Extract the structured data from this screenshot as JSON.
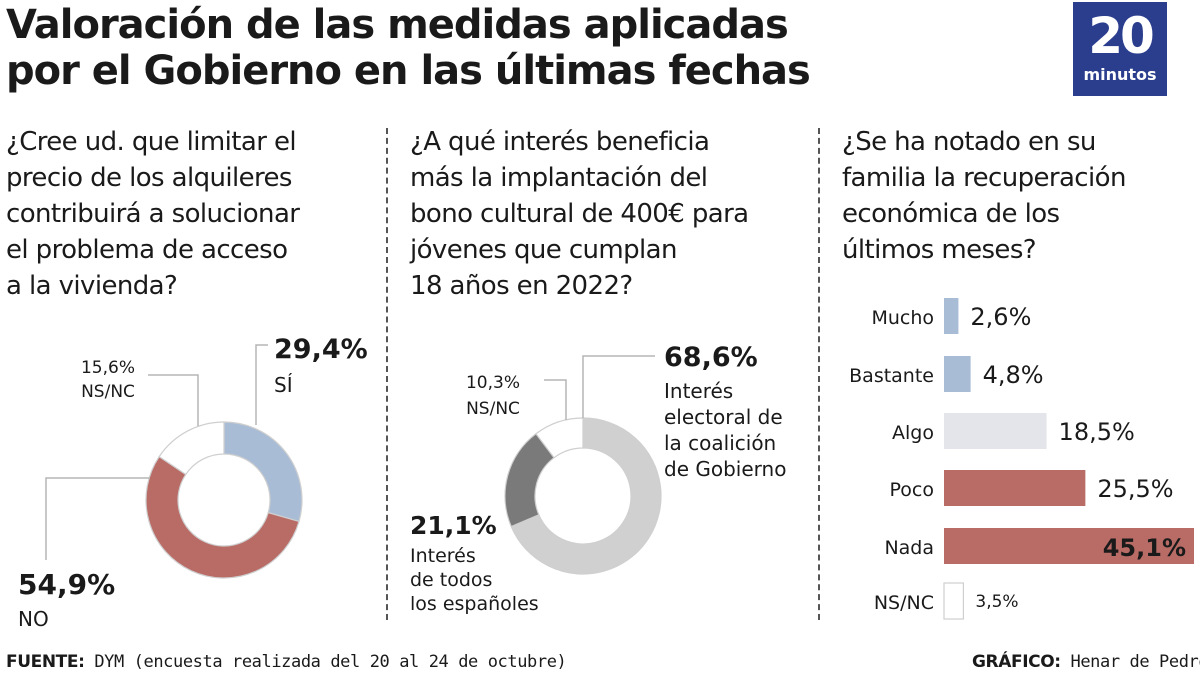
{
  "title": {
    "line1": "Valoración de las medidas aplicadas",
    "line2": "por el Gobierno en las últimas fechas"
  },
  "logo": {
    "number": "20",
    "word": "minutos",
    "color": "#2b3e8e"
  },
  "colors": {
    "blue": "#a9bcd6",
    "red": "#b96b66",
    "lightgray": "#e4e5ea",
    "gray": "#7a7a7a",
    "silver": "#d0d0d0",
    "white": "#ffffff",
    "stroke": "#cfcfcf"
  },
  "questions": {
    "q1": [
      "¿Cree ud. que limitar el",
      "precio de los alquileres",
      "contribuirá a solucionar",
      "el problema de acceso",
      "a la vivienda?"
    ],
    "q2": [
      "¿A qué interés beneficia",
      "más la implantación del",
      "bono cultural de 400€ para",
      "jóvenes que cumplan",
      "18 años en 2022?"
    ],
    "q3": [
      "¿Se ha notado en su",
      "familia la recuperación",
      "económica de los",
      "últimos meses?"
    ]
  },
  "chart_data": [
    {
      "type": "pie",
      "donut": true,
      "slices": [
        {
          "label": "SÍ",
          "value": 29.4,
          "value_label": "29,4%",
          "color": "#a9bcd6"
        },
        {
          "label": "NO",
          "value": 54.9,
          "value_label": "54,9%",
          "color": "#b96b66"
        },
        {
          "label": "NS/NC",
          "value": 15.6,
          "value_label": "15,6%",
          "color": "#ffffff"
        }
      ]
    },
    {
      "type": "pie",
      "donut": true,
      "slices": [
        {
          "label": "Interés electoral de la coalición de Gobierno",
          "label_lines": [
            "Interés",
            "electoral de",
            "la coalición",
            "de Gobierno"
          ],
          "value": 68.6,
          "value_label": "68,6%",
          "color": "#d0d0d0"
        },
        {
          "label": "Interés de todos los españoles",
          "label_lines": [
            "Interés",
            "de todos",
            "los españoles"
          ],
          "value": 21.1,
          "value_label": "21,1%",
          "color": "#7a7a7a"
        },
        {
          "label": "NS/NC",
          "label_lines": [
            "NS/NC"
          ],
          "value": 10.3,
          "value_label": "10,3%",
          "color": "#ffffff"
        }
      ]
    },
    {
      "type": "bar",
      "orientation": "horizontal",
      "categories": [
        "Mucho",
        "Bastante",
        "Algo",
        "Poco",
        "Nada",
        "NS/NC"
      ],
      "values": [
        2.6,
        4.8,
        18.5,
        25.5,
        45.1,
        3.5
      ],
      "value_labels": [
        "2,6%",
        "4,8%",
        "18,5%",
        "25,5%",
        "45,1%",
        "3,5%"
      ],
      "colors": [
        "#a9bcd6",
        "#a9bcd6",
        "#e4e5ea",
        "#b96b66",
        "#b96b66",
        "#ffffff"
      ]
    }
  ],
  "footer": {
    "source_label": "FUENTE:",
    "source_text": "DYM (encuesta realizada del 20 al 24 de octubre)",
    "credit_label": "GRÁFICO:",
    "credit_text": "Henar de Pedro"
  }
}
